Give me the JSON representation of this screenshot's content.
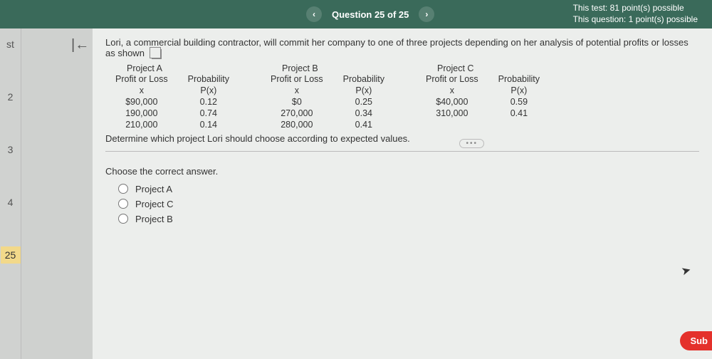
{
  "header": {
    "prev_icon": "‹",
    "title": "Question 25 of 25",
    "next_icon": "›",
    "test_points": "This test: 81 point(s) possible",
    "question_points": "This question: 1 point(s) possible"
  },
  "sidebar": {
    "items": [
      "st",
      "2",
      "3",
      "4",
      "25"
    ],
    "selected_index": 4
  },
  "problem": {
    "intro": "Lori, a commercial building contractor, will commit her company to one of three projects depending on her analysis of potential profits or losses as shown",
    "determine": "Determine which project Lori should choose according to expected values.",
    "col_profit": "Profit or Loss",
    "col_prob": "Probability",
    "sub_x": "x",
    "sub_px": "P(x)",
    "projects": [
      {
        "name": "Project A",
        "rows": [
          {
            "x": "$90,000",
            "p": "0.12"
          },
          {
            "x": "190,000",
            "p": "0.74"
          },
          {
            "x": "210,000",
            "p": "0.14"
          }
        ]
      },
      {
        "name": "Project B",
        "rows": [
          {
            "x": "$0",
            "p": "0.25"
          },
          {
            "x": "270,000",
            "p": "0.34"
          },
          {
            "x": "280,000",
            "p": "0.41"
          }
        ]
      },
      {
        "name": "Project C",
        "rows": [
          {
            "x": "$40,000",
            "p": "0.59"
          },
          {
            "x": "310,000",
            "p": "0.41"
          }
        ]
      }
    ]
  },
  "answer": {
    "prompt": "Choose the correct answer.",
    "options": [
      "Project A",
      "Project C",
      "Project B"
    ]
  },
  "buttons": {
    "submit": "Sub",
    "more": "•••"
  },
  "colors": {
    "header_bg": "#3a6a5a",
    "page_bg": "#d8dad8",
    "main_bg": "#eceeec",
    "submit_bg": "#e4312b",
    "selected_bg": "#f2d98a"
  }
}
